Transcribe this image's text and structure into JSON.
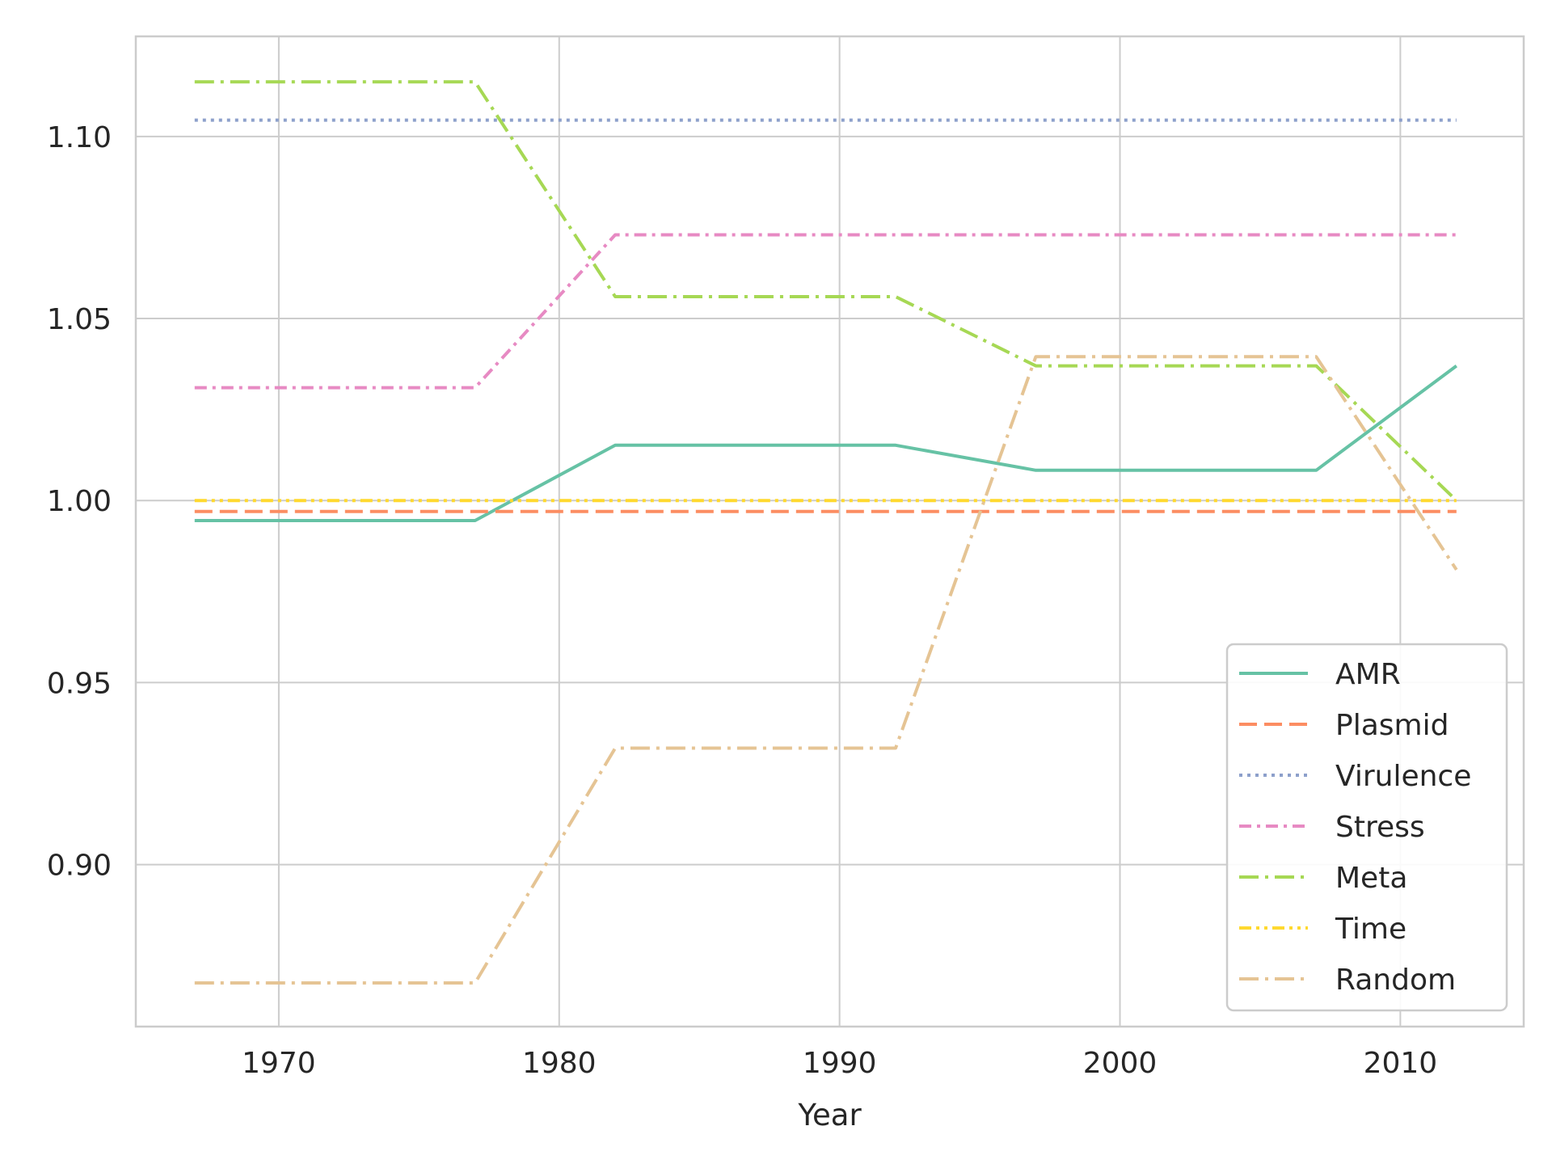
{
  "chart_data": {
    "type": "line",
    "title": "",
    "xlabel": "Year",
    "ylabel": "",
    "xlim": [
      1964.9,
      2014.4
    ],
    "ylim": [
      0.8555,
      1.1275
    ],
    "xticks": [
      1970,
      1980,
      1990,
      2000,
      2010
    ],
    "xtick_labels": [
      "1970",
      "1980",
      "1990",
      "2000",
      "2010"
    ],
    "yticks": [
      0.9,
      0.95,
      1.0,
      1.05,
      1.1
    ],
    "ytick_labels": [
      "0.90",
      "0.95",
      "1.00",
      "1.05",
      "1.10"
    ],
    "grid": true,
    "legend_position": "lower-right",
    "x": [
      1967,
      1977,
      1982,
      1992,
      1997,
      2007,
      2012
    ],
    "series": [
      {
        "name": "AMR",
        "color": "#66c2a5",
        "dash": "solid",
        "values": [
          0.9945,
          0.9945,
          1.0152,
          1.0152,
          1.0083,
          1.0083,
          1.037
        ]
      },
      {
        "name": "Plasmid",
        "color": "#fc8d62",
        "dash": "dashed",
        "values": [
          0.997,
          0.997,
          0.997,
          0.997,
          0.997,
          0.997,
          0.997
        ]
      },
      {
        "name": "Virulence",
        "color": "#8da0cb",
        "dash": "dotted",
        "values": [
          1.1045,
          1.1045,
          1.1045,
          1.1045,
          1.1045,
          1.1045,
          1.1045
        ]
      },
      {
        "name": "Stress",
        "color": "#e78ac3",
        "dash": "dashdot",
        "values": [
          1.031,
          1.031,
          1.073,
          1.073,
          1.073,
          1.073,
          1.073
        ]
      },
      {
        "name": "Meta",
        "color": "#a6d854",
        "dash": "longdashdot",
        "values": [
          1.115,
          1.115,
          1.056,
          1.056,
          1.037,
          1.037,
          1.0
        ]
      },
      {
        "name": "Time",
        "color": "#ffd92f",
        "dash": "dashdotdot",
        "values": [
          1.0,
          1.0,
          1.0,
          1.0,
          1.0,
          1.0,
          1.0
        ]
      },
      {
        "name": "Random",
        "color": "#e5c494",
        "dash": "longdashdot",
        "values": [
          0.8675,
          0.8675,
          0.932,
          0.932,
          1.0395,
          1.0395,
          0.981
        ]
      }
    ]
  }
}
